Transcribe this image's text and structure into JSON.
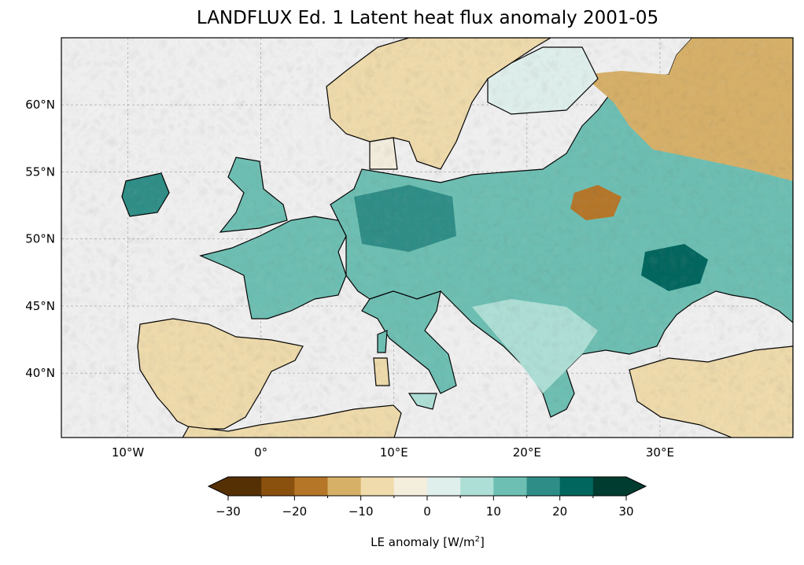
{
  "chart_data": {
    "type": "heatmap",
    "title": "LANDFLUX Ed. 1 Latent heat flux anomaly 2001-05",
    "projection": "PlateCarree",
    "extent": {
      "lon": [
        -15,
        40
      ],
      "lat": [
        35.2,
        65
      ]
    },
    "grid": true,
    "xticks": [
      {
        "value": -10,
        "label": "10°W"
      },
      {
        "value": 0,
        "label": "0°"
      },
      {
        "value": 10,
        "label": "10°E"
      },
      {
        "value": 20,
        "label": "20°E"
      },
      {
        "value": 30,
        "label": "30°E"
      }
    ],
    "yticks": [
      {
        "value": 60,
        "label": "60°N"
      },
      {
        "value": 55,
        "label": "55°N"
      },
      {
        "value": 50,
        "label": "50°N"
      },
      {
        "value": 45,
        "label": "45°N"
      },
      {
        "value": 40,
        "label": "40°N"
      }
    ],
    "colorbar": {
      "label": "LE anomaly [W/m",
      "label_sup": "2",
      "label_end": "]",
      "orientation": "horizontal",
      "extend": "both",
      "levels": [
        -30,
        -25,
        -20,
        -15,
        -10,
        -5,
        0,
        5,
        10,
        15,
        20,
        25,
        30
      ],
      "tick_labels": [
        "−30",
        "−20",
        "−10",
        "0",
        "10",
        "20",
        "30"
      ],
      "colors": [
        "#553005",
        "#8a500e",
        "#b57628",
        "#d7b068",
        "#efdbab",
        "#f4eedd",
        "#dfefec",
        "#aedfd6",
        "#6dbfb3",
        "#2e8e87",
        "#01665e",
        "#003c30"
      ]
    },
    "ocean_color": "#f0f0f0"
  }
}
